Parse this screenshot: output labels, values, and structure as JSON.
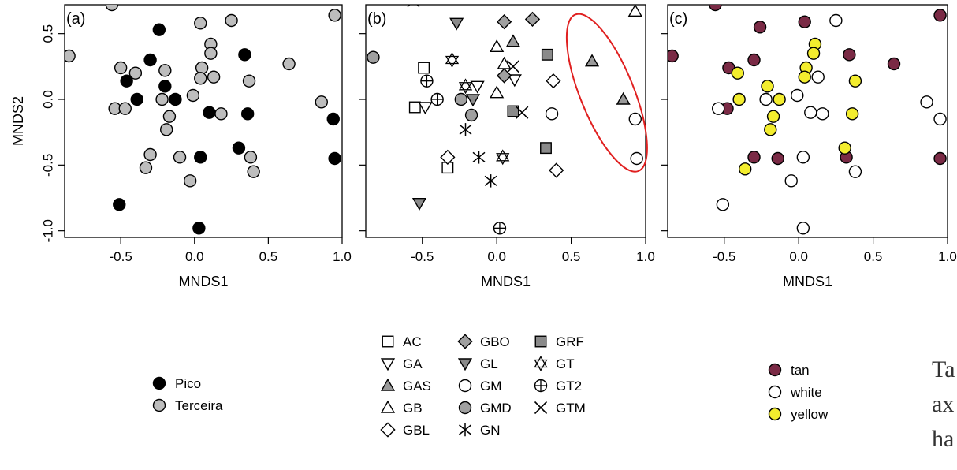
{
  "chart_data": [
    {
      "panel_label": "(a)",
      "type": "scatter",
      "xlabel": "MNDS1",
      "ylabel": "MNDS2",
      "xlim": [
        -0.88,
        1.0
      ],
      "ylim": [
        -1.05,
        0.72
      ],
      "xticks": [
        "-0.5",
        "0.0",
        "0.5",
        "1.0"
      ],
      "xtick_values": [
        -0.5,
        0.0,
        0.5,
        1.0
      ],
      "yticks": [
        "-1.0",
        "-0.5",
        "0.0",
        "0.5"
      ],
      "ytick_values": [
        -1.0,
        -0.5,
        0.0,
        0.5
      ],
      "series": [
        {
          "name": "Pico",
          "symbol": "circle",
          "fill": "#000000",
          "stroke": "#000000",
          "points": [
            [
              -0.24,
              0.53
            ],
            [
              -0.3,
              0.3
            ],
            [
              -0.46,
              0.14
            ],
            [
              -0.39,
              0.0
            ],
            [
              -0.2,
              0.1
            ],
            [
              -0.13,
              0.0
            ],
            [
              0.1,
              -0.1
            ],
            [
              0.36,
              -0.11
            ],
            [
              0.34,
              0.34
            ],
            [
              0.94,
              -0.15
            ],
            [
              0.3,
              -0.37
            ],
            [
              0.95,
              -0.45
            ],
            [
              0.04,
              -0.44
            ],
            [
              -0.51,
              -0.8
            ],
            [
              0.03,
              -0.98
            ]
          ]
        },
        {
          "name": "Terceira",
          "symbol": "circle",
          "fill": "#bdbdbd",
          "stroke": "#000000",
          "points": [
            [
              -0.56,
              0.72
            ],
            [
              -0.85,
              0.33
            ],
            [
              -0.5,
              0.24
            ],
            [
              -0.4,
              0.2
            ],
            [
              -0.2,
              0.22
            ],
            [
              0.04,
              0.58
            ],
            [
              0.25,
              0.6
            ],
            [
              0.11,
              0.42
            ],
            [
              0.11,
              0.35
            ],
            [
              0.05,
              0.24
            ],
            [
              0.04,
              0.16
            ],
            [
              0.13,
              0.17
            ],
            [
              0.37,
              0.14
            ],
            [
              -0.17,
              -0.13
            ],
            [
              -0.22,
              0.0
            ],
            [
              -0.01,
              0.03
            ],
            [
              0.18,
              -0.11
            ],
            [
              -0.19,
              -0.23
            ],
            [
              -0.54,
              -0.07
            ],
            [
              -0.47,
              -0.07
            ],
            [
              -0.3,
              -0.42
            ],
            [
              -0.33,
              -0.52
            ],
            [
              -0.1,
              -0.44
            ],
            [
              0.38,
              -0.44
            ],
            [
              0.4,
              -0.55
            ],
            [
              -0.03,
              -0.62
            ],
            [
              0.64,
              0.27
            ],
            [
              0.86,
              -0.02
            ],
            [
              0.95,
              0.64
            ]
          ]
        }
      ]
    },
    {
      "panel_label": "(b)",
      "type": "scatter",
      "xlabel": "MNDS1",
      "ylabel": "",
      "xlim": [
        -0.88,
        1.0
      ],
      "ylim": [
        -1.05,
        0.72
      ],
      "xticks": [
        "-0.5",
        "0.0",
        "0.5",
        "1.0"
      ],
      "xtick_values": [
        -0.5,
        0.0,
        0.5,
        1.0
      ],
      "series": [
        {
          "name": "AC",
          "symbol": "square",
          "fill": "#ffffff",
          "points": [
            [
              -0.49,
              0.24
            ],
            [
              -0.55,
              -0.06
            ],
            [
              -0.33,
              -0.52
            ]
          ]
        },
        {
          "name": "GA",
          "symbol": "triangle-down",
          "fill": "#ffffff",
          "points": [
            [
              -0.48,
              -0.06
            ],
            [
              -0.13,
              0.1
            ],
            [
              0.12,
              0.15
            ]
          ]
        },
        {
          "name": "GAS",
          "symbol": "triangle-up",
          "fill": "#9a9a9a",
          "points": [
            [
              0.64,
              0.29
            ],
            [
              0.85,
              0.0
            ],
            [
              0.11,
              0.44
            ]
          ]
        },
        {
          "name": "GB",
          "symbol": "triangle-up",
          "fill": "#ffffff",
          "points": [
            [
              0.93,
              0.67
            ],
            [
              0.0,
              0.05
            ],
            [
              0.05,
              0.27
            ],
            [
              0.0,
              0.4
            ]
          ]
        },
        {
          "name": "GBL",
          "symbol": "diamond",
          "fill": "#ffffff",
          "points": [
            [
              -0.33,
              -0.44
            ],
            [
              0.38,
              0.14
            ],
            [
              0.4,
              -0.54
            ]
          ]
        },
        {
          "name": "GBO",
          "symbol": "diamond",
          "fill": "#a0a0a0",
          "points": [
            [
              0.05,
              0.59
            ],
            [
              0.24,
              0.61
            ],
            [
              0.05,
              0.18
            ]
          ]
        },
        {
          "name": "GL",
          "symbol": "triangle-down",
          "fill": "#8a8a8a",
          "points": [
            [
              -0.27,
              0.58
            ],
            [
              -0.52,
              -0.79
            ],
            [
              -0.16,
              0.0
            ]
          ]
        },
        {
          "name": "GM",
          "symbol": "circle",
          "fill": "#ffffff",
          "points": [
            [
              0.93,
              -0.15
            ],
            [
              0.94,
              -0.45
            ],
            [
              0.37,
              -0.11
            ]
          ]
        },
        {
          "name": "GMD",
          "symbol": "circle",
          "fill": "#a0a0a0",
          "points": [
            [
              -0.83,
              0.32
            ],
            [
              -0.24,
              0.0
            ],
            [
              -0.17,
              -0.12
            ]
          ]
        },
        {
          "name": "GN",
          "symbol": "asterisk",
          "fill": "none",
          "points": [
            [
              -0.21,
              -0.23
            ],
            [
              -0.12,
              -0.44
            ],
            [
              -0.04,
              -0.62
            ]
          ]
        },
        {
          "name": "GRF",
          "symbol": "square",
          "fill": "#8a8a8a",
          "points": [
            [
              0.34,
              0.34
            ],
            [
              0.11,
              -0.09
            ],
            [
              0.33,
              -0.37
            ]
          ]
        },
        {
          "name": "GT",
          "symbol": "star-of-david",
          "fill": "#ffffff",
          "points": [
            [
              -0.3,
              0.3
            ],
            [
              -0.21,
              0.1
            ],
            [
              0.04,
              -0.44
            ]
          ]
        },
        {
          "name": "GT2",
          "symbol": "circle-plus",
          "fill": "#ffffff",
          "points": [
            [
              -0.47,
              0.14
            ],
            [
              -0.4,
              0.0
            ],
            [
              0.02,
              -0.98
            ]
          ]
        },
        {
          "name": "GTM",
          "symbol": "cross",
          "fill": "none",
          "points": [
            [
              -0.56,
              0.75
            ],
            [
              0.11,
              0.25
            ],
            [
              0.17,
              -0.1
            ]
          ]
        }
      ],
      "annotation": "red-ellipse-highlight"
    },
    {
      "panel_label": "(c)",
      "type": "scatter",
      "xlabel": "MNDS1",
      "ylabel": "",
      "xlim": [
        -0.88,
        1.0
      ],
      "ylim": [
        -1.05,
        0.72
      ],
      "xticks": [
        "-0.5",
        "0.0",
        "0.5",
        "1.0"
      ],
      "xtick_values": [
        -0.5,
        0.0,
        0.5,
        1.0
      ],
      "series": [
        {
          "name": "tan",
          "symbol": "circle",
          "fill": "#7a2a45",
          "stroke": "#000000",
          "points": [
            [
              -0.56,
              0.72
            ],
            [
              -0.85,
              0.33
            ],
            [
              -0.26,
              0.55
            ],
            [
              0.04,
              0.59
            ],
            [
              -0.47,
              0.24
            ],
            [
              -0.3,
              0.3
            ],
            [
              0.34,
              0.34
            ],
            [
              0.64,
              0.27
            ],
            [
              0.95,
              0.64
            ],
            [
              -0.48,
              -0.07
            ],
            [
              -0.3,
              -0.44
            ],
            [
              -0.14,
              -0.45
            ],
            [
              0.32,
              -0.44
            ],
            [
              0.95,
              -0.45
            ]
          ]
        },
        {
          "name": "white",
          "symbol": "circle",
          "fill": "#ffffff",
          "stroke": "#000000",
          "points": [
            [
              0.25,
              0.6
            ],
            [
              0.13,
              0.17
            ],
            [
              -0.54,
              -0.07
            ],
            [
              -0.22,
              0.0
            ],
            [
              -0.01,
              0.03
            ],
            [
              0.08,
              -0.1
            ],
            [
              0.16,
              -0.11
            ],
            [
              0.86,
              -0.02
            ],
            [
              0.95,
              -0.15
            ],
            [
              0.03,
              -0.44
            ],
            [
              0.38,
              -0.55
            ],
            [
              -0.05,
              -0.62
            ],
            [
              -0.51,
              -0.8
            ],
            [
              0.03,
              -0.98
            ]
          ]
        },
        {
          "name": "yellow",
          "symbol": "circle",
          "fill": "#f3ed2e",
          "stroke": "#000000",
          "points": [
            [
              0.11,
              0.42
            ],
            [
              0.1,
              0.35
            ],
            [
              -0.41,
              0.2
            ],
            [
              0.05,
              0.24
            ],
            [
              -0.21,
              0.1
            ],
            [
              0.04,
              0.17
            ],
            [
              -0.13,
              0.0
            ],
            [
              -0.4,
              0.0
            ],
            [
              0.38,
              0.14
            ],
            [
              -0.17,
              -0.13
            ],
            [
              0.36,
              -0.11
            ],
            [
              -0.19,
              -0.23
            ],
            [
              0.31,
              -0.37
            ],
            [
              -0.36,
              -0.53
            ]
          ]
        }
      ]
    }
  ],
  "legends": {
    "panel_a": [
      {
        "label": "Pico",
        "symbol": "circle",
        "fill": "#000000"
      },
      {
        "label": "Terceira",
        "symbol": "circle",
        "fill": "#bdbdbd"
      }
    ],
    "panel_b_columns": [
      [
        "AC",
        "GA",
        "GAS",
        "GB",
        "GBL"
      ],
      [
        "GBO",
        "GL",
        "GM",
        "GMD",
        "GN"
      ],
      [
        "GRF",
        "GT",
        "GT2",
        "GTM"
      ]
    ],
    "panel_c": [
      {
        "label": "tan",
        "symbol": "circle",
        "fill": "#7a2a45"
      },
      {
        "label": "white",
        "symbol": "circle",
        "fill": "#ffffff"
      },
      {
        "label": "yellow",
        "symbol": "circle",
        "fill": "#f3ed2e"
      }
    ]
  },
  "side_text_fragments": [
    "Ta",
    "ax",
    "ha"
  ],
  "colors": {
    "highlight_ellipse": "#e02020",
    "axis": "#000000"
  }
}
